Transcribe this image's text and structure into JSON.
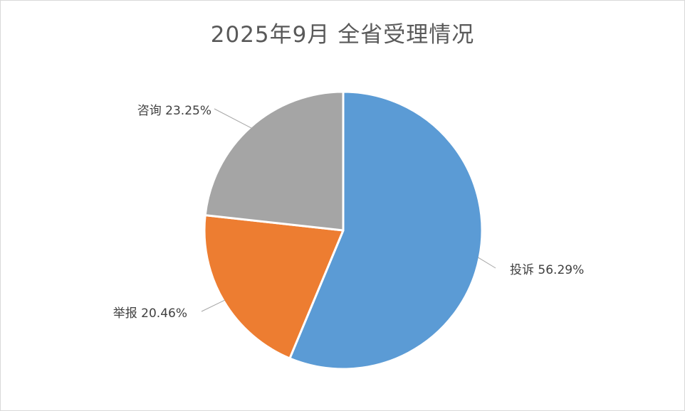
{
  "chart_data": {
    "type": "pie",
    "title": "2025年9月 全省受理情况",
    "slices": [
      {
        "label": "投诉",
        "value": 56.29,
        "percent_text": "56.29%",
        "color": "#5b9bd5"
      },
      {
        "label": "举报",
        "value": 20.46,
        "percent_text": "20.46%",
        "color": "#ed7d31"
      },
      {
        "label": "咨询",
        "value": 23.25,
        "percent_text": "23.25%",
        "color": "#a5a5a5"
      }
    ],
    "start_angle_deg": 0,
    "direction": "clockwise",
    "legend": "none",
    "data_labels": "outside-with-leader-lines"
  }
}
